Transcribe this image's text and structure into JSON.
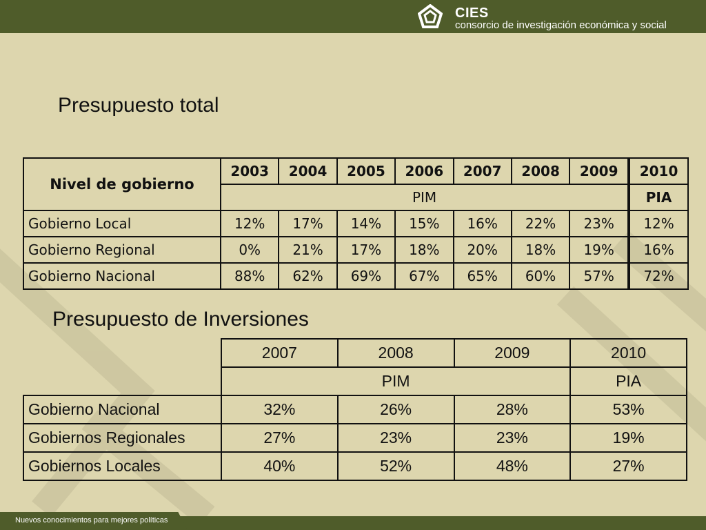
{
  "brand": {
    "name": "CIES",
    "subtitle": "consorcio de investigación económica y social"
  },
  "section1": {
    "title": "Presupuesto total",
    "corner_header": "Nivel de gobierno",
    "years": [
      "2003",
      "2004",
      "2005",
      "2006",
      "2007",
      "2008",
      "2009",
      "2010"
    ],
    "pim_label": "PIM",
    "pia_label": "PIA",
    "rows": [
      {
        "label": "Gobierno Local",
        "values": [
          "12%",
          "17%",
          "14%",
          "15%",
          "16%",
          "22%",
          "23%",
          "12%"
        ]
      },
      {
        "label": "Gobierno Regional",
        "values": [
          "0%",
          "21%",
          "17%",
          "18%",
          "20%",
          "18%",
          "19%",
          "16%"
        ]
      },
      {
        "label": "Gobierno Nacional",
        "values": [
          "88%",
          "62%",
          "69%",
          "67%",
          "65%",
          "60%",
          "57%",
          "72%"
        ]
      }
    ]
  },
  "section2": {
    "title": "Presupuesto de Inversiones",
    "years": [
      "2007",
      "2008",
      "2009",
      "2010"
    ],
    "pim_label": "PIM",
    "pia_label": "PIA",
    "rows": [
      {
        "label": "Gobierno Nacional",
        "values": [
          "32%",
          "26%",
          "28%",
          "53%"
        ]
      },
      {
        "label": "Gobiernos Regionales",
        "values": [
          "27%",
          "23%",
          "23%",
          "19%"
        ]
      },
      {
        "label": "Gobiernos Locales",
        "values": [
          "40%",
          "52%",
          "48%",
          "27%"
        ]
      }
    ]
  },
  "footer": {
    "tagline": "Nuevos conocimientos para mejores políticas"
  },
  "colors": {
    "background": "#ddd6ae",
    "bar": "#4f5c2a",
    "decoration": "#cfc9a4"
  }
}
